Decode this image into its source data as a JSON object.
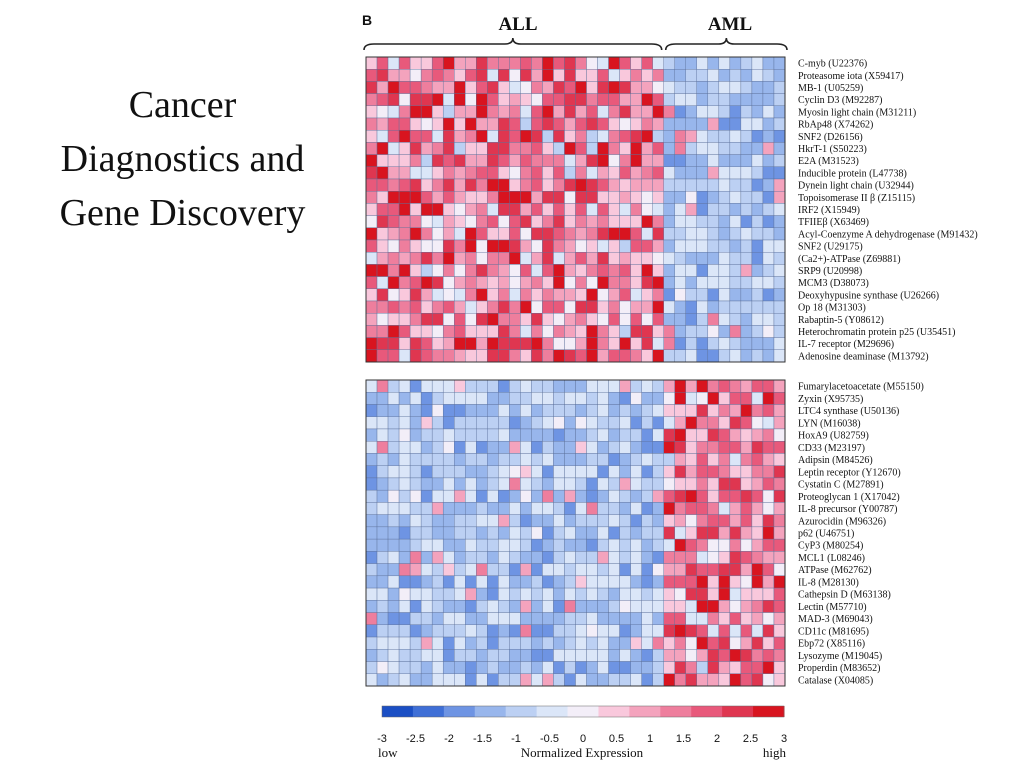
{
  "slide": {
    "title_lines": [
      "Cancer",
      "Diagnostics and",
      "Gene Discovery"
    ]
  },
  "chart_data": {
    "type": "heatmap",
    "panel_label": "B",
    "group_labels": [
      "ALL",
      "AML"
    ],
    "group_sizes": [
      27,
      11
    ],
    "n_columns": 38,
    "panels": [
      {
        "name": "ALL-high genes",
        "genes": [
          "C-myb (U22376)",
          "Proteasome iota (X59417)",
          "MB-1 (U05259)",
          "Cyclin D3 (M92287)",
          "Myosin light chain (M31211)",
          "RbAp48 (X74262)",
          "SNF2 (D26156)",
          "HkrT-1 (S50223)",
          "E2A (M31523)",
          "Inducible protein (L47738)",
          "Dynein light chain (U32944)",
          "Topoisomerase II β (Z15115)",
          "IRF2 (X15949)",
          "TFIIEβ (X63469)",
          "Acyl-Coenzyme A dehydrogenase (M91432)",
          "SNF2 (U29175)",
          "(Ca2+)-ATPase (Z69881)",
          "SRP9 (U20998)",
          "MCM3 (D38073)",
          "Deoxyhypusine synthase (U26266)",
          "Op 18 (M31303)",
          "Rabaptin-5 (Y08612)",
          "Heterochromatin protein p25 (U35451)",
          "IL-7 receptor (M29696)",
          "Adenosine deaminase (M13792)"
        ],
        "high_group": "ALL"
      },
      {
        "name": "AML-high genes",
        "genes": [
          "Fumarylacetoacetate (M55150)",
          "Zyxin (X95735)",
          "LTC4 synthase (U50136)",
          "LYN (M16038)",
          "HoxA9 (U82759)",
          "CD33 (M23197)",
          "Adipsin (M84526)",
          "Leptin receptor (Y12670)",
          "Cystatin C (M27891)",
          "Proteoglycan 1 (X17042)",
          "IL-8 precursor (Y00787)",
          "Azurocidin (M96326)",
          "p62 (U46751)",
          "CyP3 (M80254)",
          "MCL1 (L08246)",
          "ATPase (M62762)",
          "IL-8 (M28130)",
          "Cathepsin D (M63138)",
          "Lectin (M57710)",
          "MAD-3 (M69043)",
          "CD11c (M81695)",
          "Ebp72 (X85116)",
          "Lysozyme (M19045)",
          "Properdin (M83652)",
          "Catalase (X04085)"
        ],
        "high_group": "AML"
      }
    ],
    "colorbar": {
      "ticks": [
        "-3",
        "-2.5",
        "-2",
        "-1.5",
        "-1",
        "-0.5",
        "0",
        "0.5",
        "1",
        "1.5",
        "2",
        "2.5",
        "3"
      ],
      "range": [
        -3,
        3
      ],
      "low_label": "low",
      "high_label": "high",
      "title": "Normalized Expression",
      "colors": [
        "#1b4fc4",
        "#3f6fd6",
        "#6e94e3",
        "#98b6ec",
        "#bcd0f3",
        "#dbe6f8",
        "#f3eef8",
        "#f9c8dc",
        "#f4a3bd",
        "#ee7e9d",
        "#e8597b",
        "#df3650",
        "#d8141f"
      ]
    }
  }
}
